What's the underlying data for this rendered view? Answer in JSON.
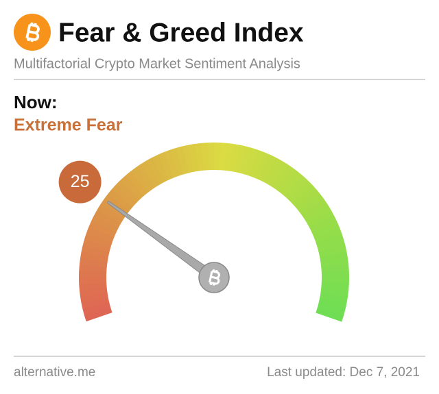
{
  "chart_data": {
    "type": "gauge",
    "title": "Fear & Greed Index",
    "subtitle": "Multifactorial Crypto Market Sentiment Analysis",
    "label": "Now:",
    "classification": "Extreme Fear",
    "value": 25,
    "ylim": [
      0,
      100
    ],
    "source": "alternative.me",
    "updated": "Last updated: Dec 7, 2021"
  }
}
